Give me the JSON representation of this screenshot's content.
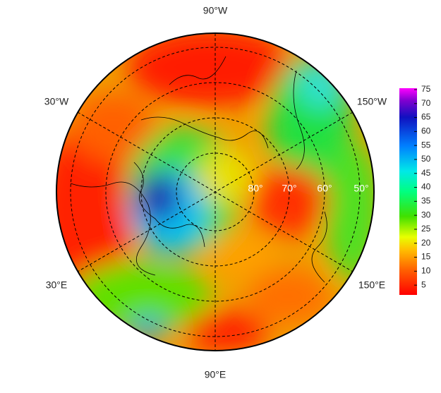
{
  "map": {
    "lon_labels": {
      "top": "90°W",
      "upper_left": "30°W",
      "upper_right": "150°W",
      "lower_left": "30°E",
      "lower_right": "150°E",
      "bottom": "90°E"
    },
    "lat_labels": [
      "80°",
      "70°",
      "60°",
      "50°"
    ]
  },
  "colorbar": {
    "range": [
      1.5,
      75.5
    ],
    "ticks": [
      5,
      10,
      15,
      20,
      25,
      30,
      35,
      40,
      45,
      50,
      55,
      60,
      65,
      70,
      75
    ]
  }
}
